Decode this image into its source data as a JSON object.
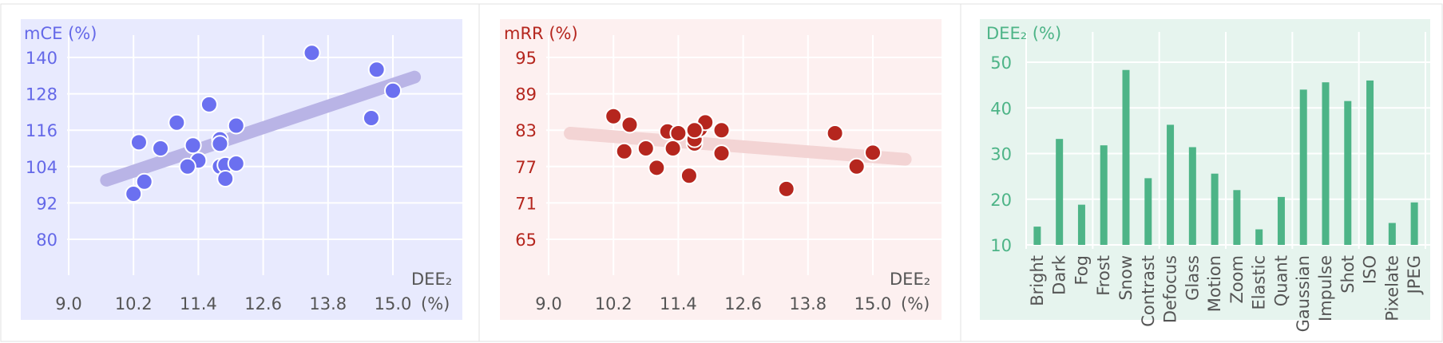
{
  "charts": [
    {
      "type": "scatter",
      "ylabel": "mCE (%)",
      "xlabel_main": "DEE₂",
      "xlabel_unit": "(%)",
      "xticks": [
        9.0,
        10.2,
        11.4,
        12.6,
        13.8,
        15.0
      ],
      "yticks": [
        80,
        92,
        104,
        116,
        128,
        140
      ],
      "xlim": [
        9.0,
        16.2
      ],
      "ylim": [
        80,
        146
      ],
      "colors": {
        "bg": "#e8eafe",
        "point": "#6b70f0",
        "trend": "#b9b4e6",
        "text": "#6468e8",
        "axis": "#555555"
      },
      "points": [
        [
          13.5,
          141.5
        ],
        [
          14.7,
          136
        ],
        [
          15.0,
          129
        ],
        [
          14.6,
          120
        ],
        [
          11.6,
          124.5
        ],
        [
          11.0,
          118.5
        ],
        [
          12.1,
          117.5
        ],
        [
          10.3,
          112
        ],
        [
          10.7,
          110
        ],
        [
          11.3,
          111
        ],
        [
          11.8,
          113
        ],
        [
          11.8,
          111.5
        ],
        [
          11.4,
          106
        ],
        [
          11.2,
          104
        ],
        [
          11.8,
          104
        ],
        [
          11.9,
          104.5
        ],
        [
          12.1,
          105
        ],
        [
          11.9,
          100
        ],
        [
          10.4,
          99
        ],
        [
          10.2,
          95
        ]
      ],
      "trend": [
        [
          9.7,
          99.5
        ],
        [
          15.4,
          133.5
        ]
      ]
    },
    {
      "type": "scatter",
      "ylabel": "mRR (%)",
      "xlabel_main": "DEE₂",
      "xlabel_unit": "(%)",
      "xticks": [
        9.0,
        10.2,
        11.4,
        12.6,
        13.8,
        15.0
      ],
      "yticks": [
        65,
        71,
        77,
        83,
        89,
        95
      ],
      "xlim": [
        9.0,
        16.2
      ],
      "ylim": [
        65,
        97
      ],
      "colors": {
        "bg": "#fdf0f0",
        "point": "#b5261e",
        "trend": "#f3d4d4",
        "text": "#b5261e",
        "axis": "#555555"
      },
      "points": [
        [
          10.2,
          85.3
        ],
        [
          10.5,
          83.9
        ],
        [
          10.4,
          79.5
        ],
        [
          10.8,
          80
        ],
        [
          11.0,
          76.8
        ],
        [
          11.2,
          82.8
        ],
        [
          11.3,
          80
        ],
        [
          11.4,
          82.5
        ],
        [
          11.6,
          75.5
        ],
        [
          11.7,
          80.8
        ],
        [
          11.7,
          81.5
        ],
        [
          11.8,
          83.2
        ],
        [
          11.9,
          84.3
        ],
        [
          11.7,
          83
        ],
        [
          12.2,
          83
        ],
        [
          12.2,
          79.2
        ],
        [
          13.4,
          73.3
        ],
        [
          14.3,
          82.5
        ],
        [
          14.7,
          77
        ],
        [
          15.0,
          79.3
        ]
      ],
      "trend": [
        [
          9.4,
          82.5
        ],
        [
          15.6,
          78.2
        ]
      ]
    },
    {
      "type": "bar",
      "ylabel": "DEE₂ (%)",
      "categories": [
        "Bright",
        "Dark",
        "Fog",
        "Frost",
        "Snow",
        "Contrast",
        "Defocus",
        "Glass",
        "Motion",
        "Zoom",
        "Elastic",
        "Quant",
        "Gaussian",
        "Impulse",
        "Shot",
        "ISO",
        "Pixelate",
        "JPEG"
      ],
      "values": [
        14.0,
        33.2,
        18.8,
        31.8,
        48.3,
        24.6,
        36.3,
        31.4,
        25.6,
        22.0,
        13.4,
        20.5,
        44.0,
        45.6,
        41.5,
        46.0,
        14.8,
        19.3
      ],
      "yticks": [
        10,
        20,
        30,
        40,
        50
      ],
      "ylim": [
        10,
        52
      ],
      "colors": {
        "bg": "#e6f4ee",
        "bar": "#4db487",
        "text": "#4db487",
        "axis": "#555555"
      }
    }
  ]
}
